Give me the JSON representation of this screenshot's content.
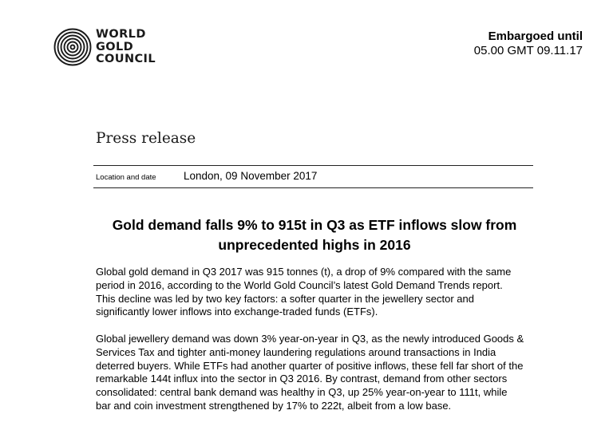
{
  "logo": {
    "lines": [
      "WORLD",
      "GOLD",
      "COUNCIL"
    ]
  },
  "embargo": {
    "line1": "Embargoed until",
    "line2": "05.00 GMT 09.11.17"
  },
  "doc_type": "Press release",
  "location_date": {
    "label": "Location and date",
    "value": "London, 09 November 2017"
  },
  "headline": {
    "lines": [
      "Gold demand falls 9% to 915t in Q3 as ETF inflows slow from",
      "unprecedented highs in 2016"
    ]
  },
  "paragraphs": [
    {
      "lines": [
        "Global gold demand in Q3 2017 was 915 tonnes (t), a drop of 9% compared with the same",
        "period in 2016, according to the World Gold Council’s latest Gold Demand Trends report.",
        "This decline was led by two key factors: a softer quarter in the jewellery sector and",
        "significantly lower inflows into exchange-traded funds (ETFs)."
      ]
    },
    {
      "lines": [
        "Global jewellery demand was down 3% year-on-year in Q3, as the newly introduced Goods &",
        "Services Tax and tighter anti-money laundering regulations around transactions in India",
        "deterred buyers. While ETFs had another quarter of positive inflows, these fell far short of the",
        "remarkable 144t influx into the sector in Q3 2016. By contrast, demand from other sectors",
        "consolidated: central bank demand was healthy in Q3, up 25% year-on-year to 111t, while",
        "bar and coin investment strengthened by 17% to 222t, albeit from a low base."
      ]
    }
  ]
}
